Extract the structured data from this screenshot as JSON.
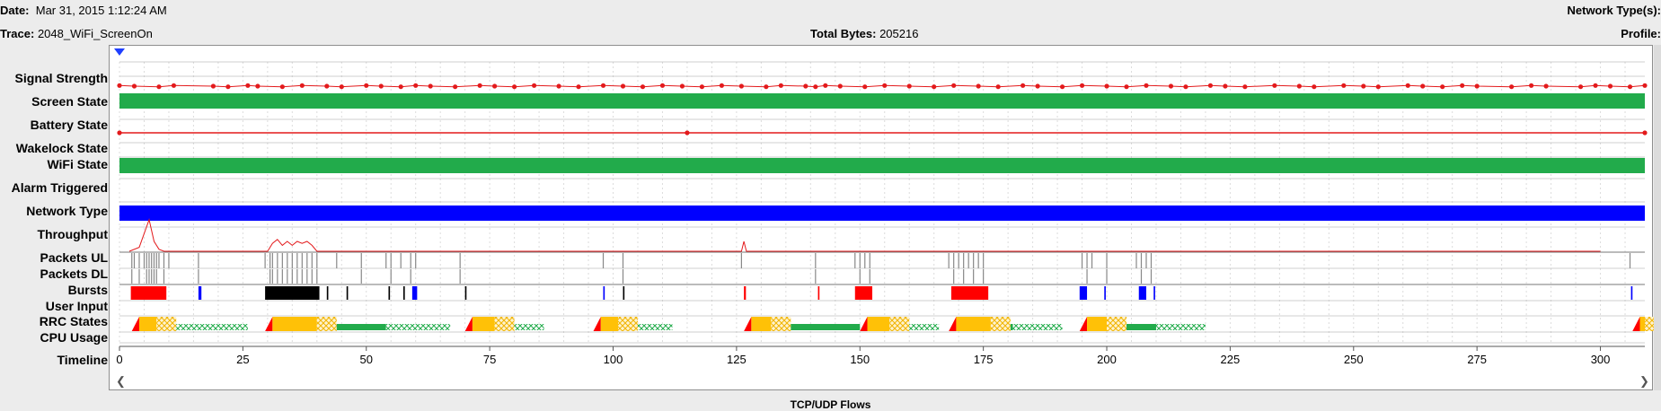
{
  "header": {
    "date_label": "Date:",
    "date_value": "Mar 31, 2015 1:12:24 AM",
    "trace_label": "Trace:",
    "trace_value": "2048_WiFi_ScreenOn",
    "total_bytes_label": "Total Bytes:",
    "total_bytes_value": "205216",
    "network_types_label": "Network Type(s):",
    "profile_label": "Profile:"
  },
  "rows": {
    "signal_strength": "Signal Strength",
    "screen_state": "Screen State",
    "battery_state": "Battery State",
    "wakelock_state": "Wakelock State",
    "wifi_state": "WiFi State",
    "alarm_triggered": "Alarm Triggered",
    "network_type": "Network Type",
    "throughput": "Throughput",
    "packets_ul": "Packets UL",
    "packets_dl": "Packets DL",
    "bursts": "Bursts",
    "user_input": "User Input",
    "rrc_states": "RRC States",
    "cpu_usage": "CPU Usage",
    "timeline": "Timeline"
  },
  "timeline": {
    "min": 0,
    "max": 309,
    "ticks": [
      "0",
      "25",
      "50",
      "75",
      "100",
      "125",
      "150",
      "175",
      "200",
      "225",
      "250",
      "275",
      "300"
    ]
  },
  "bottom_caption": "TCP/UDP Flows",
  "icons": {
    "cursor": "blue-triangle-icon",
    "scroll_left": "chevron-left-icon",
    "scroll_right": "chevron-right-icon"
  },
  "colors": {
    "screen_on": "#22ab4b",
    "wifi_on": "#22ab4b",
    "network_type": "#0000ff",
    "signal": "#e31a1c",
    "throughput": "#e31a1c",
    "packets": "#888888",
    "burst_red": "#ff0000",
    "burst_black": "#000000",
    "burst_blue": "#0000ff",
    "rrc_promo": "#ff0000",
    "rrc_dch": "#ffc107",
    "rrc_tail": "#22ab4b"
  }
}
